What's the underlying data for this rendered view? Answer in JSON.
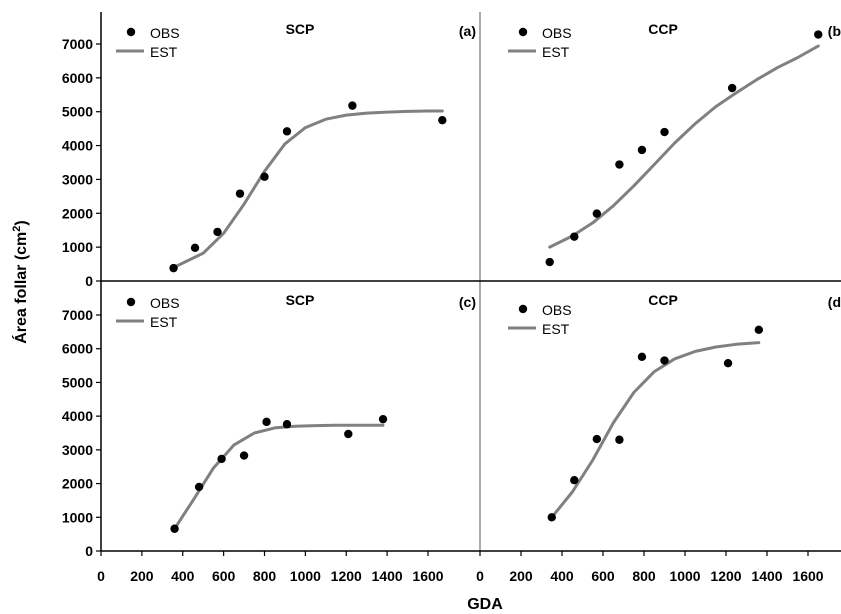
{
  "xlabel": "GDA",
  "ylabel": "Área follar (cm",
  "ylabel_sup": "2",
  "ylabel_close": ")",
  "legend": {
    "obs": "OBS",
    "est": "EST"
  },
  "colors": {
    "observed": "#000000",
    "estimated": "#808080",
    "axis": "#000000",
    "divider": "#555555"
  },
  "chart_data": [
    {
      "id": "a",
      "type": "scatter",
      "title": "SCP",
      "panel_label": "(a)",
      "xlim": [
        0,
        1700
      ],
      "ylim": [
        0,
        7500
      ],
      "xticks": [
        0,
        200,
        400,
        600,
        800,
        1000,
        1200,
        1400,
        1600
      ],
      "xticklabels": [
        "0",
        "200",
        "400",
        "600",
        "800",
        "1000",
        "1200",
        "1400",
        "1600"
      ],
      "yticks": [
        0,
        1000,
        2000,
        3000,
        4000,
        5000,
        6000,
        7000
      ],
      "yticklabels": [
        "0",
        "1000",
        "2000",
        "3000",
        "4000",
        "5000",
        "6000",
        "7000"
      ],
      "observed": {
        "x": [
          355,
          460,
          570,
          680,
          800,
          910,
          1230,
          1670
        ],
        "y": [
          380,
          980,
          1450,
          2580,
          3080,
          4420,
          5180,
          4750
        ]
      },
      "estimated": {
        "x": [
          355,
          500,
          600,
          700,
          800,
          900,
          1000,
          1100,
          1200,
          1300,
          1400,
          1500,
          1600,
          1670
        ],
        "y": [
          400,
          820,
          1410,
          2270,
          3240,
          4050,
          4530,
          4780,
          4900,
          4960,
          4990,
          5010,
          5020,
          5020
        ]
      }
    },
    {
      "id": "b",
      "type": "scatter",
      "title": "CCP",
      "panel_label": "(b",
      "xlim": [
        0,
        1700
      ],
      "ylim": [
        0,
        7500
      ],
      "xticks": [
        0,
        200,
        400,
        600,
        800,
        1000,
        1200,
        1400,
        1600
      ],
      "xticklabels": [
        "0",
        "200",
        "400",
        "600",
        "800",
        "1000",
        "1200",
        "1400",
        "1600"
      ],
      "yticks": [
        0,
        1000,
        2000,
        3000,
        4000,
        5000,
        6000,
        7000
      ],
      "yticklabels": [
        "0",
        "1000",
        "2000",
        "3000",
        "4000",
        "5000",
        "6000",
        "7000"
      ],
      "observed": {
        "x": [
          340,
          460,
          570,
          680,
          790,
          900,
          1230,
          1650
        ],
        "y": [
          560,
          1310,
          1990,
          3440,
          3870,
          4400,
          5700,
          7280
        ]
      },
      "estimated": {
        "x": [
          340,
          450,
          550,
          650,
          750,
          850,
          950,
          1050,
          1150,
          1250,
          1350,
          1450,
          1550,
          1650
        ],
        "y": [
          1000,
          1330,
          1720,
          2220,
          2810,
          3440,
          4080,
          4650,
          5150,
          5560,
          5950,
          6300,
          6600,
          6940
        ]
      }
    },
    {
      "id": "c",
      "type": "scatter",
      "title": "SCP",
      "panel_label": "(c)",
      "xlim": [
        0,
        1700
      ],
      "ylim": [
        0,
        7500
      ],
      "xticks": [
        0,
        200,
        400,
        600,
        800,
        1000,
        1200,
        1400,
        1600
      ],
      "xticklabels": [
        "0",
        "200",
        "400",
        "600",
        "800",
        "1000",
        "1200",
        "1400",
        "1600"
      ],
      "yticks": [
        0,
        1000,
        2000,
        3000,
        4000,
        5000,
        6000,
        7000
      ],
      "yticklabels": [
        "0",
        "1000",
        "2000",
        "3000",
        "4000",
        "5000",
        "6000",
        "7000"
      ],
      "observed": {
        "x": [
          360,
          480,
          590,
          700,
          810,
          910,
          1210,
          1380
        ],
        "y": [
          660,
          1900,
          2730,
          2830,
          3830,
          3760,
          3470,
          3910
        ]
      },
      "estimated": {
        "x": [
          360,
          450,
          550,
          650,
          750,
          850,
          950,
          1050,
          1150,
          1250,
          1380
        ],
        "y": [
          660,
          1500,
          2460,
          3140,
          3500,
          3650,
          3700,
          3720,
          3730,
          3730,
          3730
        ]
      }
    },
    {
      "id": "d",
      "type": "scatter",
      "title": "CCP",
      "panel_label": "(d",
      "xlim": [
        0,
        1700
      ],
      "ylim": [
        0,
        7500
      ],
      "xticks": [
        0,
        200,
        400,
        600,
        800,
        1000,
        1200,
        1400,
        1600
      ],
      "xticklabels": [
        "0",
        "200",
        "400",
        "600",
        "800",
        "1000",
        "1200",
        "1400",
        "1600"
      ],
      "yticks": [
        0,
        1000,
        2000,
        3000,
        4000,
        5000,
        6000,
        7000
      ],
      "yticklabels": [
        "0",
        "1000",
        "2000",
        "3000",
        "4000",
        "5000",
        "6000",
        "7000"
      ],
      "observed": {
        "x": [
          350,
          460,
          570,
          680,
          790,
          900,
          1210,
          1360
        ],
        "y": [
          1000,
          2100,
          3320,
          3300,
          5760,
          5650,
          5570,
          6560
        ]
      },
      "estimated": {
        "x": [
          350,
          450,
          550,
          650,
          750,
          850,
          950,
          1050,
          1150,
          1250,
          1360
        ],
        "y": [
          1000,
          1750,
          2700,
          3800,
          4700,
          5320,
          5700,
          5920,
          6050,
          6130,
          6180
        ]
      }
    }
  ]
}
